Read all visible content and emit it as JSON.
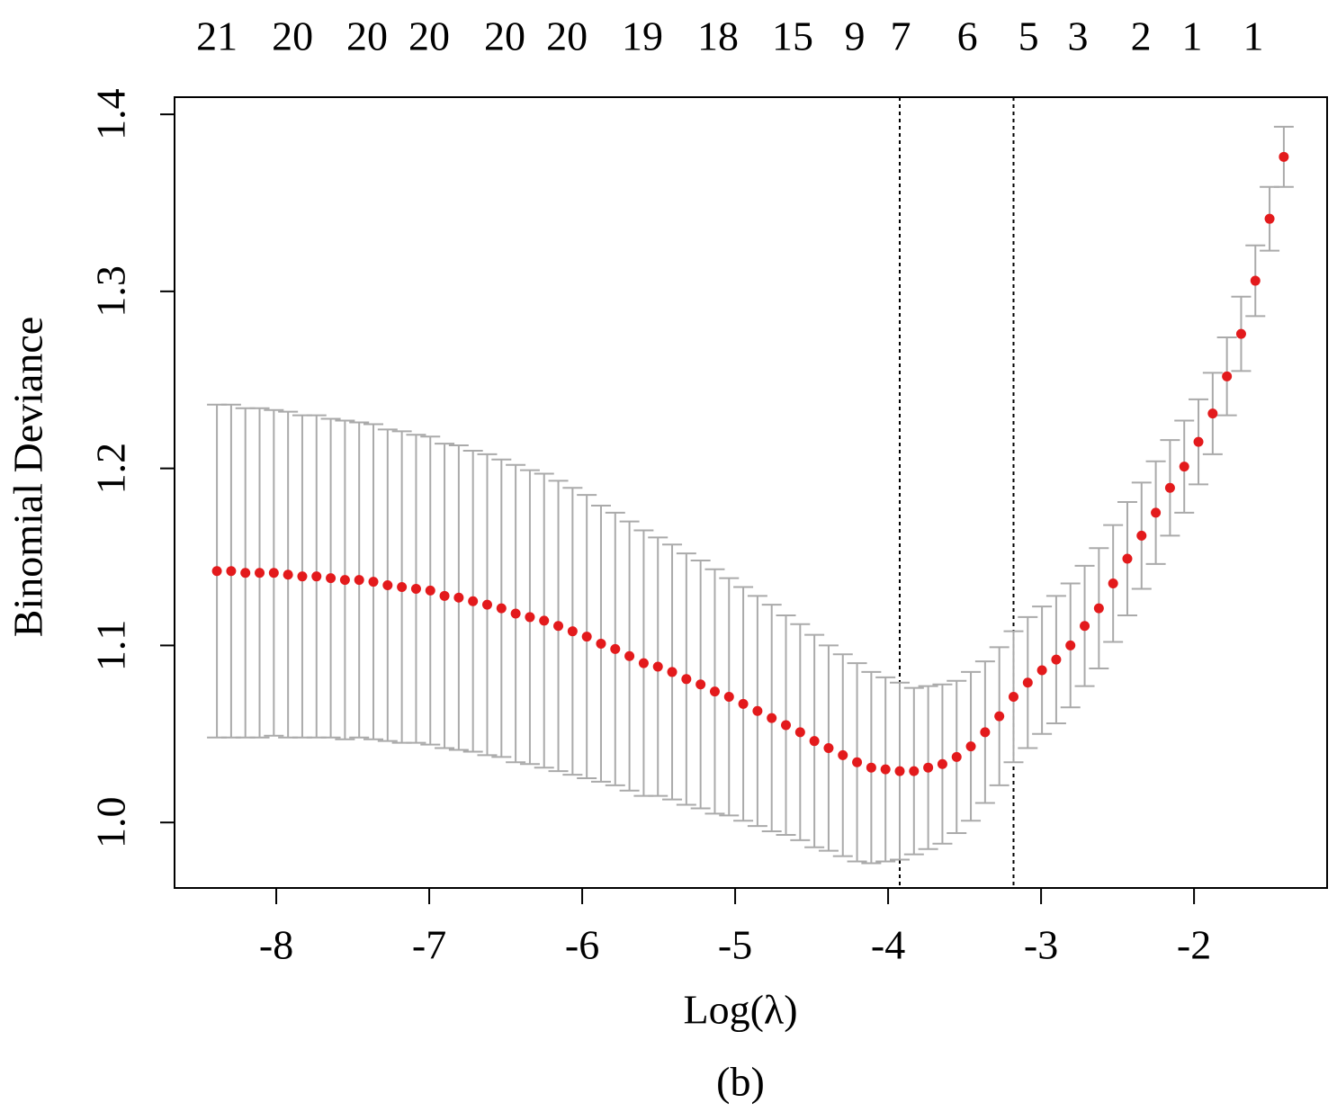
{
  "chart_data": {
    "type": "errorbar",
    "xlabel": "Log(λ)",
    "ylabel": "Binomial Deviance",
    "caption": "(b)",
    "color": "#e31a1c",
    "error_color": "#aaaaaa",
    "vline_color": "#000000",
    "x": [
      -8.388,
      -8.295,
      -8.202,
      -8.109,
      -8.016,
      -7.923,
      -7.83,
      -7.737,
      -7.644,
      -7.551,
      -7.458,
      -7.365,
      -7.272,
      -7.179,
      -7.086,
      -6.993,
      -6.9,
      -6.807,
      -6.714,
      -6.621,
      -6.528,
      -6.435,
      -6.342,
      -6.249,
      -6.156,
      -6.063,
      -5.97,
      -5.877,
      -5.784,
      -5.691,
      -5.598,
      -5.505,
      -5.412,
      -5.319,
      -5.226,
      -5.133,
      -5.04,
      -4.947,
      -4.854,
      -4.761,
      -4.668,
      -4.575,
      -4.482,
      -4.389,
      -4.296,
      -4.203,
      -4.11,
      -4.017,
      -3.924,
      -3.831,
      -3.738,
      -3.645,
      -3.552,
      -3.459,
      -3.366,
      -3.273,
      -3.18,
      -3.087,
      -2.994,
      -2.901,
      -2.808,
      -2.715,
      -2.622,
      -2.529,
      -2.436,
      -2.343,
      -2.25,
      -2.157,
      -2.064,
      -1.971,
      -1.878,
      -1.785,
      -1.692,
      -1.599,
      -1.506,
      -1.413
    ],
    "values": [
      1.142,
      1.142,
      1.141,
      1.141,
      1.141,
      1.14,
      1.139,
      1.139,
      1.138,
      1.137,
      1.137,
      1.136,
      1.134,
      1.133,
      1.132,
      1.131,
      1.128,
      1.127,
      1.125,
      1.123,
      1.121,
      1.118,
      1.116,
      1.114,
      1.111,
      1.108,
      1.105,
      1.101,
      1.098,
      1.094,
      1.09,
      1.088,
      1.085,
      1.081,
      1.078,
      1.074,
      1.071,
      1.067,
      1.063,
      1.059,
      1.055,
      1.051,
      1.046,
      1.042,
      1.038,
      1.034,
      1.031,
      1.03,
      1.029,
      1.029,
      1.031,
      1.033,
      1.037,
      1.043,
      1.051,
      1.06,
      1.071,
      1.079,
      1.086,
      1.092,
      1.1,
      1.111,
      1.121,
      1.135,
      1.149,
      1.162,
      1.175,
      1.189,
      1.201,
      1.215,
      1.231,
      1.252,
      1.276,
      1.306,
      1.341,
      1.376
    ],
    "errors": [
      0.094,
      0.094,
      0.093,
      0.093,
      0.092,
      0.092,
      0.091,
      0.091,
      0.09,
      0.09,
      0.089,
      0.089,
      0.088,
      0.088,
      0.087,
      0.087,
      0.086,
      0.086,
      0.085,
      0.085,
      0.084,
      0.084,
      0.083,
      0.083,
      0.082,
      0.081,
      0.08,
      0.078,
      0.077,
      0.076,
      0.075,
      0.073,
      0.072,
      0.071,
      0.07,
      0.069,
      0.067,
      0.066,
      0.065,
      0.064,
      0.062,
      0.061,
      0.06,
      0.058,
      0.057,
      0.056,
      0.054,
      0.052,
      0.05,
      0.047,
      0.046,
      0.045,
      0.043,
      0.042,
      0.04,
      0.039,
      0.037,
      0.037,
      0.036,
      0.036,
      0.035,
      0.034,
      0.034,
      0.033,
      0.032,
      0.03,
      0.029,
      0.027,
      0.026,
      0.024,
      0.023,
      0.022,
      0.021,
      0.02,
      0.018,
      0.017
    ],
    "vlines": [
      -3.924,
      -3.18
    ],
    "xlim": [
      -8.665,
      -1.13
    ],
    "ylim": [
      0.963,
      1.4097
    ],
    "xticks": [
      -8,
      -7,
      -6,
      -5,
      -4,
      -3,
      -2
    ],
    "yticks": [
      {
        "value": 1.0,
        "label": "1.0"
      },
      1.1,
      1.2,
      1.3,
      1.4
    ],
    "top_ticks": [
      {
        "value": -8.388,
        "label": "21"
      },
      {
        "value": -7.894,
        "label": "20"
      },
      {
        "value": -7.406,
        "label": "20"
      },
      {
        "value": -7.0,
        "label": "20"
      },
      {
        "value": -6.506,
        "label": "20"
      },
      {
        "value": -6.1,
        "label": "20"
      },
      {
        "value": -5.606,
        "label": "19"
      },
      {
        "value": -5.112,
        "label": "18"
      },
      {
        "value": -4.624,
        "label": "15"
      },
      {
        "value": -4.218,
        "label": "9"
      },
      {
        "value": -3.918,
        "label": "7"
      },
      {
        "value": -3.482,
        "label": "6"
      },
      {
        "value": -3.082,
        "label": "5"
      },
      {
        "value": -2.759,
        "label": "3"
      },
      {
        "value": -2.347,
        "label": "2"
      },
      {
        "value": -2.012,
        "label": "1"
      },
      {
        "value": -1.612,
        "label": "1"
      }
    ]
  }
}
